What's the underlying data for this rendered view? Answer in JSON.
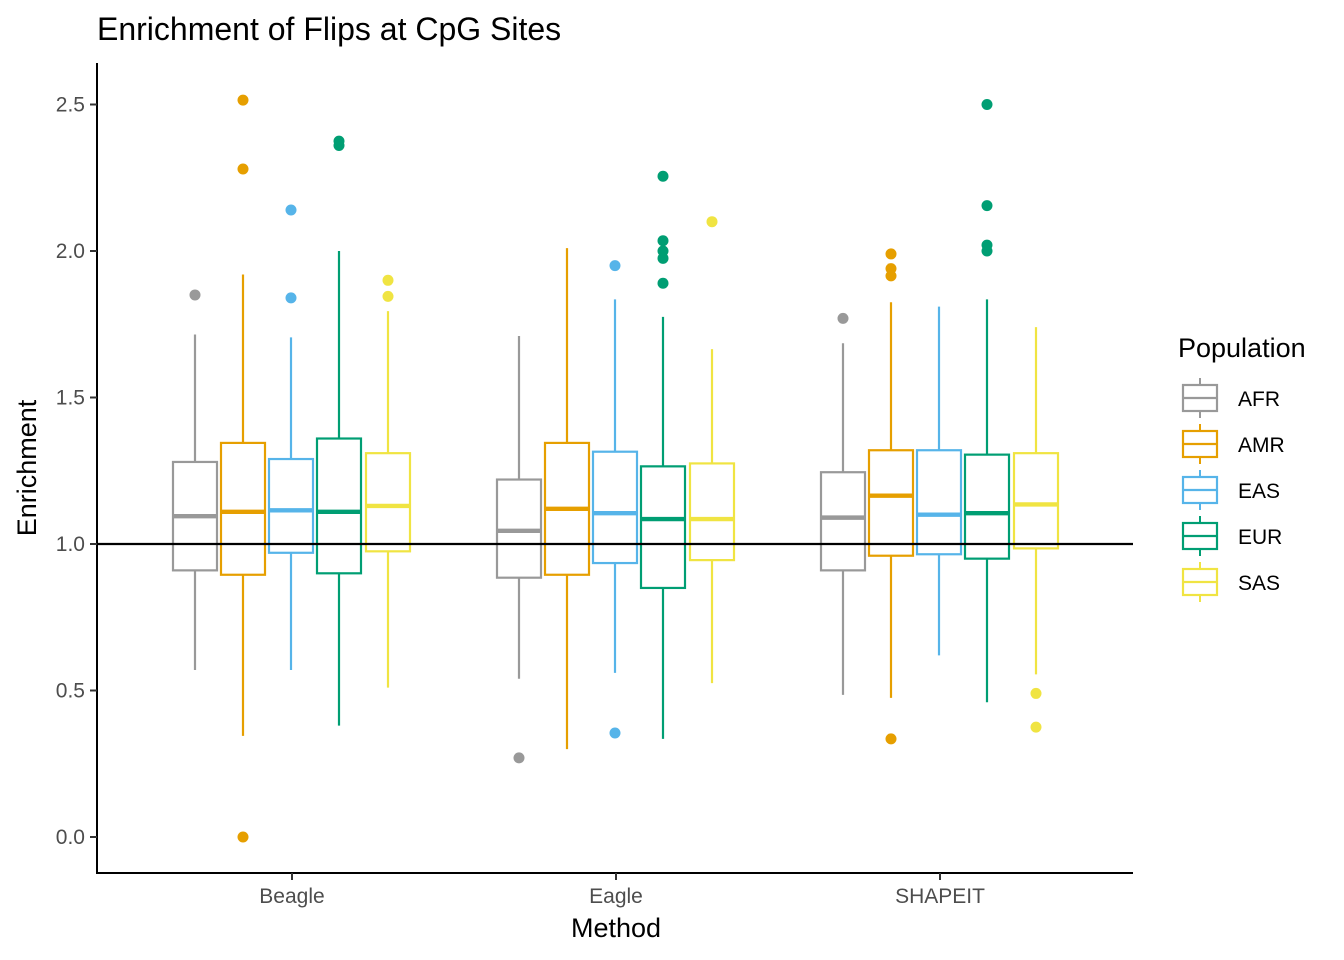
{
  "chart_data": {
    "type": "boxplot",
    "title": "Enrichment of Flips at CpG Sites",
    "xlabel": "Method",
    "ylabel": "Enrichment",
    "ylim": [
      -0.12,
      2.63
    ],
    "yticks": [
      "0.0",
      "0.5",
      "1.0",
      "1.5",
      "2.0",
      "2.5"
    ],
    "reference_line": 1.0,
    "grid": false,
    "categories": [
      "Beagle",
      "Eagle",
      "SHAPEIT"
    ],
    "legend": {
      "title": "Population",
      "position": "right",
      "entries": [
        {
          "name": "AFR",
          "color": "#999999"
        },
        {
          "name": "AMR",
          "color": "#E69F00"
        },
        {
          "name": "EAS",
          "color": "#56B4E9"
        },
        {
          "name": "EUR",
          "color": "#009E73"
        },
        {
          "name": "SAS",
          "color": "#F0E442"
        }
      ]
    },
    "groups": [
      {
        "category": "Beagle",
        "boxes": [
          {
            "series": "AFR",
            "whisker_low": 0.57,
            "q1": 0.91,
            "median": 1.095,
            "q3": 1.28,
            "whisker_high": 1.715,
            "outliers": [
              1.85
            ]
          },
          {
            "series": "AMR",
            "whisker_low": 0.345,
            "q1": 0.895,
            "median": 1.11,
            "q3": 1.345,
            "whisker_high": 1.92,
            "outliers": [
              2.515,
              2.28,
              0.0
            ]
          },
          {
            "series": "EAS",
            "whisker_low": 0.57,
            "q1": 0.97,
            "median": 1.115,
            "q3": 1.29,
            "whisker_high": 1.705,
            "outliers": [
              2.14,
              1.84
            ]
          },
          {
            "series": "EUR",
            "whisker_low": 0.38,
            "q1": 0.9,
            "median": 1.11,
            "q3": 1.36,
            "whisker_high": 2.0,
            "outliers": [
              2.375,
              2.36
            ]
          },
          {
            "series": "SAS",
            "whisker_low": 0.51,
            "q1": 0.975,
            "median": 1.13,
            "q3": 1.31,
            "whisker_high": 1.795,
            "outliers": [
              1.9,
              1.845
            ]
          }
        ]
      },
      {
        "category": "Eagle",
        "boxes": [
          {
            "series": "AFR",
            "whisker_low": 0.54,
            "q1": 0.885,
            "median": 1.045,
            "q3": 1.22,
            "whisker_high": 1.71,
            "outliers": [
              0.27
            ]
          },
          {
            "series": "AMR",
            "whisker_low": 0.3,
            "q1": 0.895,
            "median": 1.12,
            "q3": 1.345,
            "whisker_high": 2.01,
            "outliers": []
          },
          {
            "series": "EAS",
            "whisker_low": 0.56,
            "q1": 0.935,
            "median": 1.105,
            "q3": 1.315,
            "whisker_high": 1.835,
            "outliers": [
              1.95,
              0.355
            ]
          },
          {
            "series": "EUR",
            "whisker_low": 0.335,
            "q1": 0.85,
            "median": 1.085,
            "q3": 1.265,
            "whisker_high": 1.775,
            "outliers": [
              2.255,
              2.035,
              2.0,
              1.975,
              1.89
            ]
          },
          {
            "series": "SAS",
            "whisker_low": 0.525,
            "q1": 0.945,
            "median": 1.085,
            "q3": 1.275,
            "whisker_high": 1.665,
            "outliers": [
              2.1
            ]
          }
        ]
      },
      {
        "category": "SHAPEIT",
        "boxes": [
          {
            "series": "AFR",
            "whisker_low": 0.485,
            "q1": 0.91,
            "median": 1.09,
            "q3": 1.245,
            "whisker_high": 1.685,
            "outliers": [
              1.77
            ]
          },
          {
            "series": "AMR",
            "whisker_low": 0.475,
            "q1": 0.96,
            "median": 1.165,
            "q3": 1.32,
            "whisker_high": 1.825,
            "outliers": [
              1.99,
              1.94,
              1.915,
              0.335
            ]
          },
          {
            "series": "EAS",
            "whisker_low": 0.62,
            "q1": 0.965,
            "median": 1.1,
            "q3": 1.32,
            "whisker_high": 1.81,
            "outliers": []
          },
          {
            "series": "EUR",
            "whisker_low": 0.46,
            "q1": 0.95,
            "median": 1.105,
            "q3": 1.305,
            "whisker_high": 1.835,
            "outliers": [
              2.5,
              2.155,
              2.02,
              2.0
            ]
          },
          {
            "series": "SAS",
            "whisker_low": 0.555,
            "q1": 0.985,
            "median": 1.135,
            "q3": 1.31,
            "whisker_high": 1.74,
            "outliers": [
              0.49,
              0.375
            ]
          }
        ]
      }
    ]
  }
}
